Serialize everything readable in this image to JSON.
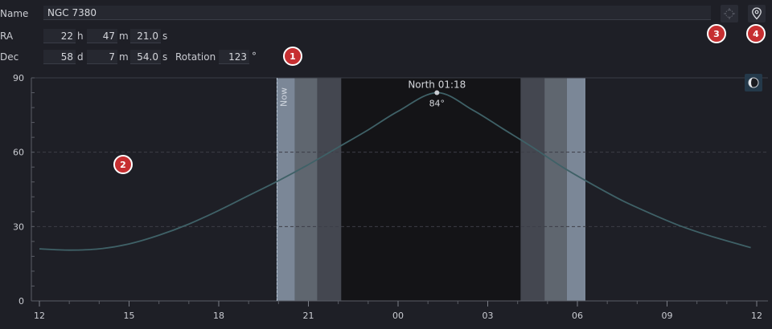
{
  "form": {
    "name_label": "Name",
    "name_value": "NGC 7380",
    "ra_label": "RA",
    "ra_h": "22",
    "ra_h_unit": "h",
    "ra_m": "47",
    "ra_m_unit": "m",
    "ra_s": "21.0",
    "ra_s_unit": "s",
    "dec_label": "Dec",
    "dec_d": "58",
    "dec_d_unit": "d",
    "dec_m": "7",
    "dec_m_unit": "m",
    "dec_s": "54.0",
    "dec_s_unit": "s",
    "rotation_label": "Rotation",
    "rotation_value": "123",
    "rotation_unit": "°"
  },
  "icons": {
    "framing": "crosshair-icon",
    "location": "location-pin-icon",
    "moon": "moon-phase-icon"
  },
  "badges": [
    "1",
    "2",
    "3",
    "4"
  ],
  "chart_data": {
    "type": "line",
    "y_ticks": [
      "0",
      "30",
      "60",
      "90"
    ],
    "x_ticks": [
      "12",
      "15",
      "18",
      "21",
      "00",
      "03",
      "06",
      "09",
      "12"
    ],
    "ylim": [
      0,
      90
    ],
    "xlim_hours": [
      12,
      36
    ],
    "now_label": "Now",
    "now_hour": 19.95,
    "transit_label": "North 01:18",
    "transit_alt_label": "84°",
    "transit_hour": 25.3,
    "transit_alt": 84,
    "twilight_bands": [
      {
        "from": 19.95,
        "to": 20.55,
        "level": "civil"
      },
      {
        "from": 20.55,
        "to": 21.3,
        "level": "nautical"
      },
      {
        "from": 21.3,
        "to": 22.1,
        "level": "astronomical"
      },
      {
        "from": 22.1,
        "to": 28.1,
        "level": "night"
      },
      {
        "from": 28.1,
        "to": 28.9,
        "level": "astronomical"
      },
      {
        "from": 28.9,
        "to": 29.65,
        "level": "nautical"
      },
      {
        "from": 29.65,
        "to": 30.25,
        "level": "civil"
      }
    ],
    "altitude_curve": [
      [
        12.0,
        21
      ],
      [
        13.0,
        20.5
      ],
      [
        14.0,
        21
      ],
      [
        15.0,
        23
      ],
      [
        16.0,
        26.5
      ],
      [
        17.0,
        31
      ],
      [
        18.0,
        36.5
      ],
      [
        19.0,
        42.5
      ],
      [
        20.0,
        48.5
      ],
      [
        21.0,
        55
      ],
      [
        22.0,
        62
      ],
      [
        23.0,
        69
      ],
      [
        24.0,
        76.5
      ],
      [
        25.3,
        84
      ],
      [
        26.5,
        77
      ],
      [
        27.5,
        69.5
      ],
      [
        28.5,
        62
      ],
      [
        29.5,
        54
      ],
      [
        30.5,
        47
      ],
      [
        31.5,
        40.5
      ],
      [
        32.5,
        35
      ],
      [
        33.5,
        30
      ],
      [
        34.5,
        26
      ],
      [
        35.8,
        21.5
      ]
    ],
    "grid": true
  }
}
